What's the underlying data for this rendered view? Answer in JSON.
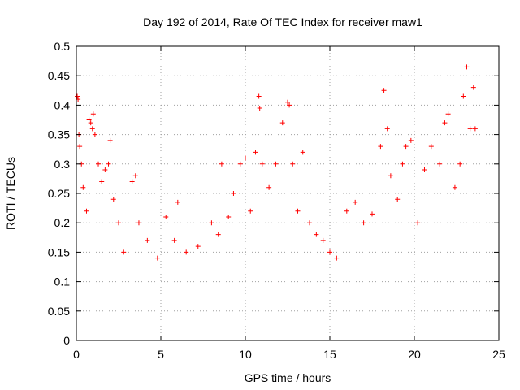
{
  "chart_data": {
    "type": "scatter",
    "title": "Day 192 of 2014, Rate Of TEC Index for receiver maw1",
    "xlabel": "GPS time / hours",
    "ylabel": "ROTI / TECUs",
    "xlim": [
      0,
      25
    ],
    "ylim": [
      0,
      0.5
    ],
    "xticks": [
      0,
      5,
      10,
      15,
      20,
      25
    ],
    "yticks": [
      0,
      0.05,
      0.1,
      0.15,
      0.2,
      0.25,
      0.3,
      0.35,
      0.4,
      0.45,
      0.5
    ],
    "xtick_labels": [
      "0",
      "5",
      "10",
      "15",
      "20",
      "25"
    ],
    "ytick_labels": [
      "0",
      "0.05",
      "0.1",
      "0.15",
      "0.2",
      "0.25",
      "0.3",
      "0.35",
      "0.4",
      "0.45",
      "0.5"
    ],
    "grid": true,
    "marker": "plus",
    "color": "#ff0000",
    "series": [
      {
        "points": [
          [
            0.05,
            0.415
          ],
          [
            0.1,
            0.41
          ],
          [
            0.15,
            0.35
          ],
          [
            0.2,
            0.33
          ],
          [
            0.3,
            0.3
          ],
          [
            0.4,
            0.26
          ],
          [
            0.6,
            0.22
          ],
          [
            0.75,
            0.375
          ],
          [
            0.85,
            0.37
          ],
          [
            0.95,
            0.36
          ],
          [
            1.0,
            0.385
          ],
          [
            1.1,
            0.35
          ],
          [
            1.3,
            0.3
          ],
          [
            1.5,
            0.27
          ],
          [
            1.7,
            0.29
          ],
          [
            1.9,
            0.3
          ],
          [
            2.0,
            0.34
          ],
          [
            2.2,
            0.24
          ],
          [
            2.5,
            0.2
          ],
          [
            2.8,
            0.15
          ],
          [
            3.3,
            0.27
          ],
          [
            3.5,
            0.28
          ],
          [
            3.7,
            0.2
          ],
          [
            4.2,
            0.17
          ],
          [
            4.8,
            0.14
          ],
          [
            5.3,
            0.21
          ],
          [
            5.8,
            0.17
          ],
          [
            6.0,
            0.235
          ],
          [
            6.5,
            0.15
          ],
          [
            7.2,
            0.16
          ],
          [
            8.0,
            0.2
          ],
          [
            8.4,
            0.18
          ],
          [
            8.6,
            0.3
          ],
          [
            9.0,
            0.21
          ],
          [
            9.3,
            0.25
          ],
          [
            9.7,
            0.3
          ],
          [
            10.0,
            0.31
          ],
          [
            10.3,
            0.22
          ],
          [
            10.6,
            0.32
          ],
          [
            10.8,
            0.415
          ],
          [
            10.85,
            0.395
          ],
          [
            11.0,
            0.3
          ],
          [
            11.4,
            0.26
          ],
          [
            11.8,
            0.3
          ],
          [
            12.2,
            0.37
          ],
          [
            12.5,
            0.405
          ],
          [
            12.6,
            0.4
          ],
          [
            12.8,
            0.3
          ],
          [
            13.1,
            0.22
          ],
          [
            13.4,
            0.32
          ],
          [
            13.8,
            0.2
          ],
          [
            14.2,
            0.18
          ],
          [
            14.6,
            0.17
          ],
          [
            15.0,
            0.15
          ],
          [
            15.4,
            0.14
          ],
          [
            16.0,
            0.22
          ],
          [
            16.5,
            0.235
          ],
          [
            17.0,
            0.2
          ],
          [
            17.5,
            0.215
          ],
          [
            18.0,
            0.33
          ],
          [
            18.2,
            0.425
          ],
          [
            18.4,
            0.36
          ],
          [
            18.6,
            0.28
          ],
          [
            19.0,
            0.24
          ],
          [
            19.3,
            0.3
          ],
          [
            19.5,
            0.33
          ],
          [
            19.8,
            0.34
          ],
          [
            20.2,
            0.2
          ],
          [
            20.6,
            0.29
          ],
          [
            21.0,
            0.33
          ],
          [
            21.5,
            0.3
          ],
          [
            21.8,
            0.37
          ],
          [
            22.0,
            0.385
          ],
          [
            22.4,
            0.26
          ],
          [
            22.7,
            0.3
          ],
          [
            22.9,
            0.415
          ],
          [
            23.1,
            0.465
          ],
          [
            23.3,
            0.36
          ],
          [
            23.5,
            0.43
          ],
          [
            23.6,
            0.36
          ]
        ]
      }
    ]
  }
}
